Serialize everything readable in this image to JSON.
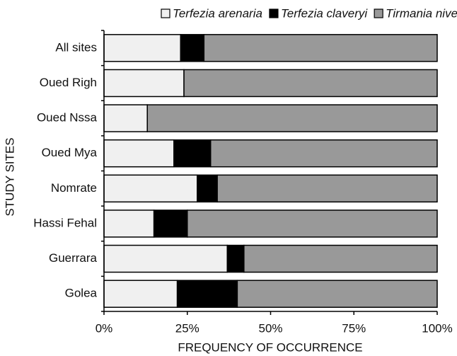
{
  "chart_data": {
    "type": "stacked_barh",
    "xlabel": "FREQUENCY OF OCCURRENCE",
    "ylabel": "STUDY SITES",
    "categories": [
      "All sites",
      "Oued Righ",
      "Oued Nssa",
      "Oued Mya",
      "Nomrate",
      "Hassi Fehal",
      "Guerrara",
      "Golea"
    ],
    "series": [
      {
        "name": "Terfezia arenaria",
        "color": "#f0f0f0",
        "values": [
          23,
          24,
          13,
          21,
          28,
          15,
          37,
          22
        ]
      },
      {
        "name": "Terfezia claveryi",
        "color": "#000000",
        "values": [
          7,
          0,
          0,
          11,
          6,
          10,
          5,
          18
        ]
      },
      {
        "name": "Tirmania nivea",
        "color": "#999999",
        "values": [
          70,
          76,
          87,
          68,
          66,
          75,
          58,
          60
        ]
      }
    ],
    "xlim": [
      0,
      100
    ],
    "xticks": [
      {
        "value": 0,
        "label": "0%"
      },
      {
        "value": 25,
        "label": "25%"
      },
      {
        "value": 50,
        "label": "50%"
      },
      {
        "value": 75,
        "label": "75%"
      },
      {
        "value": 100,
        "label": "100%"
      }
    ],
    "grid": false,
    "legend": "top"
  }
}
